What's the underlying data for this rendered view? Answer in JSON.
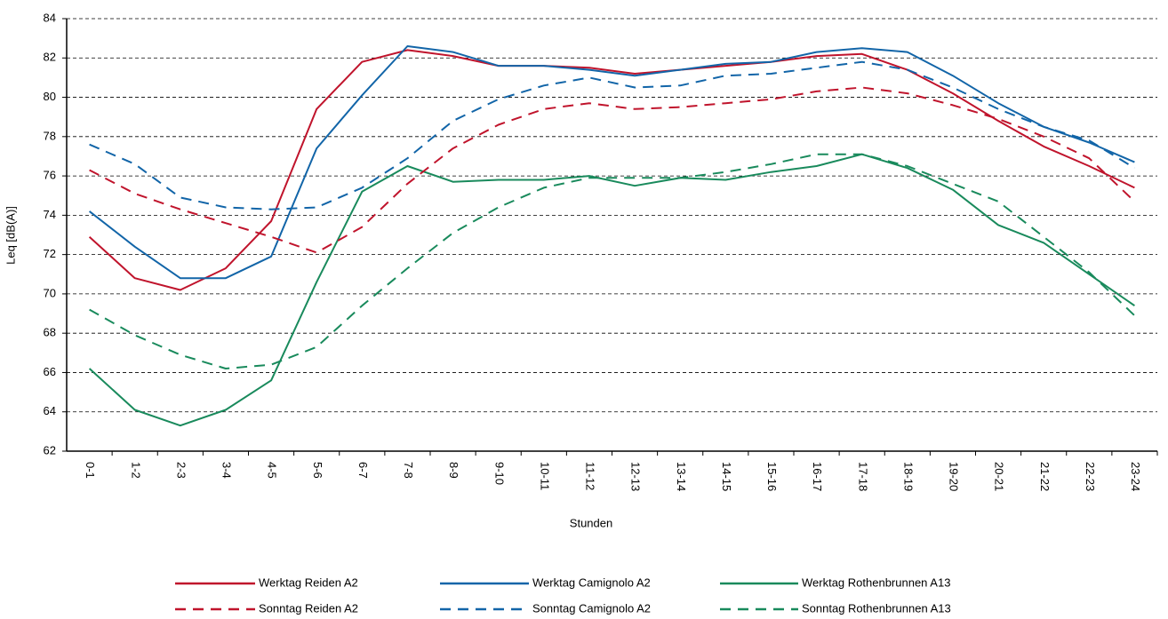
{
  "chart_data": {
    "type": "line",
    "x_label": "Stunden",
    "y_label": "Leq [dB(A)]",
    "categories": [
      "0-1",
      "1-2",
      "2-3",
      "3-4",
      "4-5",
      "5-6",
      "6-7",
      "7-8",
      "8-9",
      "9-10",
      "10-11",
      "11-12",
      "12-13",
      "13-14",
      "14-15",
      "15-16",
      "16-17",
      "17-18",
      "18-19",
      "19-20",
      "20-21",
      "21-22",
      "22-23",
      "23-24"
    ],
    "ylim": [
      62,
      84
    ],
    "yticks": [
      62,
      64,
      66,
      68,
      70,
      72,
      74,
      76,
      78,
      80,
      82,
      84
    ],
    "grid": true,
    "series": [
      {
        "name": "Werktag Reiden A2",
        "color": "#c0142c",
        "dashed": false,
        "values": [
          72.9,
          70.8,
          70.2,
          71.3,
          73.7,
          79.4,
          81.8,
          82.4,
          82.1,
          81.6,
          81.6,
          81.5,
          81.2,
          81.4,
          81.6,
          81.8,
          82.1,
          82.2,
          81.4,
          80.2,
          78.8,
          77.5,
          76.5,
          75.4
        ]
      },
      {
        "name": "Werktag Camignolo A2",
        "color": "#1265a8",
        "dashed": false,
        "values": [
          74.2,
          72.4,
          70.8,
          70.8,
          71.9,
          77.4,
          80.1,
          82.6,
          82.3,
          81.6,
          81.6,
          81.4,
          81.1,
          81.4,
          81.7,
          81.8,
          82.3,
          82.5,
          82.3,
          81.1,
          79.7,
          78.5,
          77.7,
          76.7
        ]
      },
      {
        "name": "Werktag Rothenbrunnen A13",
        "color": "#198a5c",
        "dashed": false,
        "values": [
          66.2,
          64.1,
          63.3,
          64.1,
          65.6,
          70.6,
          75.2,
          76.5,
          75.7,
          75.8,
          75.8,
          76.0,
          75.5,
          75.9,
          75.8,
          76.2,
          76.5,
          77.1,
          76.4,
          75.3,
          73.5,
          72.6,
          71.0,
          69.4
        ]
      },
      {
        "name": "Sonntag Reiden A2",
        "color": "#c0142c",
        "dashed": true,
        "values": [
          76.3,
          75.1,
          74.3,
          73.6,
          72.9,
          72.1,
          73.4,
          75.6,
          77.4,
          78.6,
          79.4,
          79.7,
          79.4,
          79.5,
          79.7,
          79.9,
          80.3,
          80.5,
          80.2,
          79.6,
          78.9,
          78.0,
          76.9,
          74.7
        ]
      },
      {
        "name": "Sonntag Camignolo A2",
        "color": "#1265a8",
        "dashed": true,
        "values": [
          77.6,
          76.6,
          74.9,
          74.4,
          74.3,
          74.4,
          75.4,
          76.9,
          78.8,
          79.9,
          80.6,
          81.0,
          80.5,
          80.6,
          81.1,
          81.2,
          81.5,
          81.8,
          81.4,
          80.5,
          79.4,
          78.5,
          77.8,
          76.4
        ]
      },
      {
        "name": "Sonntag Rothenbrunnen A13",
        "color": "#198a5c",
        "dashed": true,
        "values": [
          69.2,
          67.9,
          66.9,
          66.2,
          66.4,
          67.3,
          69.4,
          71.3,
          73.1,
          74.4,
          75.4,
          75.9,
          75.9,
          75.9,
          76.2,
          76.6,
          77.1,
          77.1,
          76.5,
          75.6,
          74.7,
          72.9,
          71.1,
          68.9
        ]
      }
    ]
  }
}
